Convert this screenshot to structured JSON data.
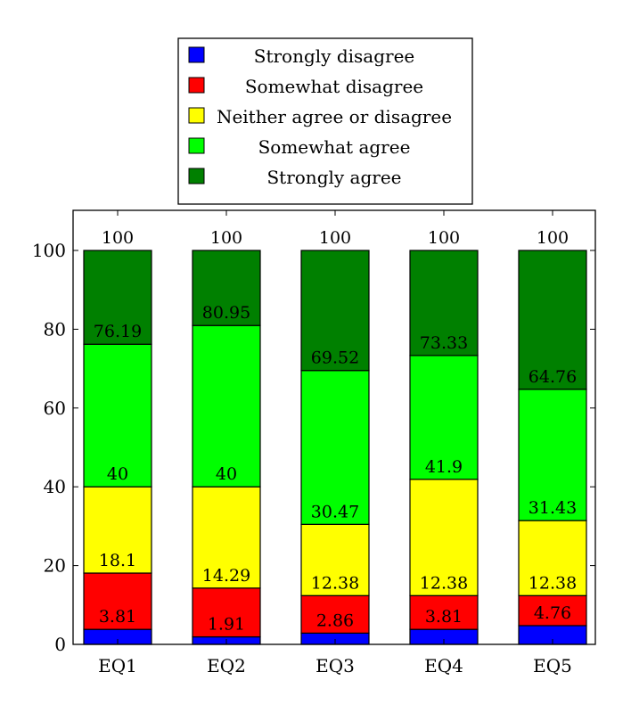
{
  "chart_data": {
    "type": "bar",
    "stacked": true,
    "cumulative_labels": true,
    "categories": [
      "EQ1",
      "EQ2",
      "EQ3",
      "EQ4",
      "EQ5"
    ],
    "series": [
      {
        "name": "Strongly disagree",
        "color": "#0000ff",
        "values": [
          3.81,
          1.91,
          2.86,
          3.81,
          4.76
        ],
        "labels": [
          "3.81",
          "1.91",
          "2.86",
          "3.81",
          "4.76"
        ]
      },
      {
        "name": "Somewhat disagree",
        "color": "#ff0000",
        "values": [
          14.29,
          12.38,
          9.52,
          8.57,
          7.62
        ],
        "labels": [
          "18.1",
          "14.29",
          "12.38",
          "12.38",
          "12.38"
        ]
      },
      {
        "name": "Neither agree or disagree",
        "color": "#ffff00",
        "values": [
          21.9,
          25.71,
          18.09,
          29.52,
          19.05
        ],
        "labels": [
          "40",
          "40",
          "30.47",
          "41.9",
          "31.43"
        ]
      },
      {
        "name": "Somewhat agree",
        "color": "#00ff00",
        "values": [
          36.19,
          40.95,
          39.05,
          31.43,
          33.33
        ],
        "labels": [
          "76.19",
          "80.95",
          "69.52",
          "73.33",
          "64.76"
        ]
      },
      {
        "name": "Strongly agree",
        "color": "#008000",
        "values": [
          23.81,
          19.05,
          30.48,
          26.67,
          35.24
        ],
        "labels": [
          "100",
          "100",
          "100",
          "100",
          "100"
        ]
      }
    ],
    "ylim": [
      0,
      110
    ],
    "yticks": [
      0,
      20,
      40,
      60,
      80,
      100
    ],
    "legend_position": "top-center, above plot",
    "grid": false,
    "title": "",
    "xlabel": "",
    "ylabel": ""
  }
}
